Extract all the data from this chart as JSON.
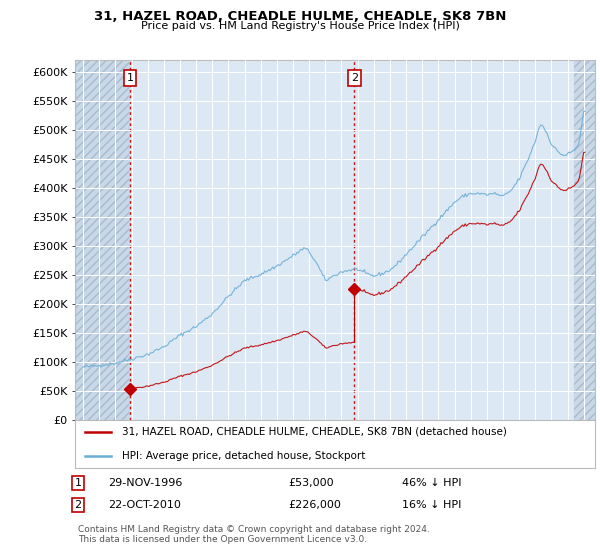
{
  "title_line1": "31, HAZEL ROAD, CHEADLE HULME, CHEADLE, SK8 7BN",
  "title_line2": "Price paid vs. HM Land Registry's House Price Index (HPI)",
  "ylim": [
    0,
    620000
  ],
  "yticks": [
    0,
    50000,
    100000,
    150000,
    200000,
    250000,
    300000,
    350000,
    400000,
    450000,
    500000,
    550000,
    600000
  ],
  "ytick_labels": [
    "£0",
    "£50K",
    "£100K",
    "£150K",
    "£200K",
    "£250K",
    "£300K",
    "£350K",
    "£400K",
    "£450K",
    "£500K",
    "£550K",
    "£600K"
  ],
  "sale1": {
    "date_num": 1996.91,
    "price": 53000,
    "label": "1",
    "date_str": "29-NOV-1996",
    "price_str": "£53,000",
    "hpi_str": "46% ↓ HPI"
  },
  "sale2": {
    "date_num": 2010.8,
    "price": 226000,
    "label": "2",
    "date_str": "22-OCT-2010",
    "price_str": "£226,000",
    "hpi_str": "16% ↓ HPI"
  },
  "legend_label1": "31, HAZEL ROAD, CHEADLE HULME, CHEADLE, SK8 7BN (detached house)",
  "legend_label2": "HPI: Average price, detached house, Stockport",
  "footer": "Contains HM Land Registry data © Crown copyright and database right 2024.\nThis data is licensed under the Open Government Licence v3.0.",
  "hpi_color": "#6aaed6",
  "price_color": "#c00000",
  "background_color": "#ffffff",
  "plot_bg_color": "#dce9f5",
  "grid_color": "#ffffff",
  "xlim_start": 1993.5,
  "xlim_end": 2025.7,
  "hatch_end": 2025.7,
  "hatch_start": 2024.42,
  "hatch_left_end": 1996.83
}
